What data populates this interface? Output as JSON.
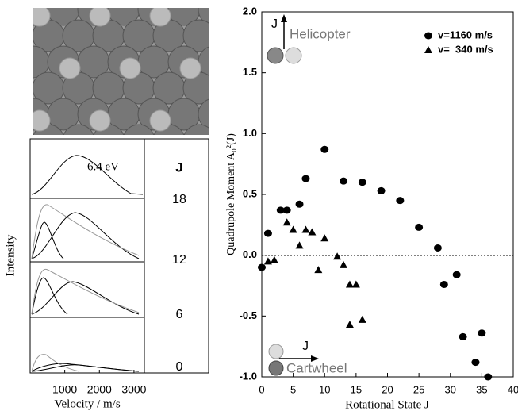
{
  "chart_data": [
    {
      "type": "scatter",
      "xlabel": "Rotational State J",
      "ylabel": "Quadrupole Moment A₀²(J)",
      "xlim": [
        0,
        40
      ],
      "xticks": [
        0,
        5,
        10,
        15,
        20,
        25,
        30,
        35,
        40
      ],
      "ylim": [
        -1,
        2
      ],
      "yticks": [
        {
          "value": -1,
          "label": "-1.0"
        },
        -0.5,
        {
          "value": 0,
          "label": "0.0"
        },
        0.5,
        {
          "value": 1,
          "label": "1.0"
        },
        1.5,
        {
          "value": 2,
          "label": "2.0"
        }
      ],
      "legend": "upper right",
      "annotations": [
        "Helicopter",
        "Cartwheel",
        "J",
        "J"
      ],
      "series": [
        {
          "name": "v=1160 m/s",
          "color": "#000000",
          "marker": "circle",
          "x": [
            0,
            1,
            3,
            4,
            6,
            7,
            10,
            13,
            16,
            19,
            22,
            25,
            28,
            29,
            31,
            32,
            34,
            35,
            36
          ],
          "values": [
            -0.1,
            0.18,
            0.37,
            0.37,
            0.42,
            0.63,
            0.87,
            0.61,
            0.6,
            0.53,
            0.45,
            0.23,
            0.06,
            -0.24,
            -0.16,
            -0.67,
            -0.88,
            -0.64,
            -1.0
          ]
        },
        {
          "name": "v=  340 m/s",
          "color": "#000000",
          "marker": "triangle",
          "x": [
            1,
            2,
            4,
            5,
            6,
            7,
            8,
            9,
            10,
            12,
            13,
            14,
            14,
            15,
            16
          ],
          "values": [
            -0.05,
            -0.04,
            0.27,
            0.21,
            0.08,
            0.21,
            0.19,
            -0.12,
            0.14,
            -0.01,
            -0.08,
            -0.24,
            -0.57,
            -0.24,
            -0.53
          ]
        }
      ]
    },
    {
      "type": "line",
      "xlabel": "Velocity / m/s",
      "ylabel": "Intensity",
      "xlim": [
        0,
        3300
      ],
      "xticks": [
        1000,
        2000,
        3000
      ],
      "annotation": "6.4 eV",
      "column_header": "J",
      "rows": [
        "18",
        "12",
        "6",
        "0"
      ]
    }
  ]
}
